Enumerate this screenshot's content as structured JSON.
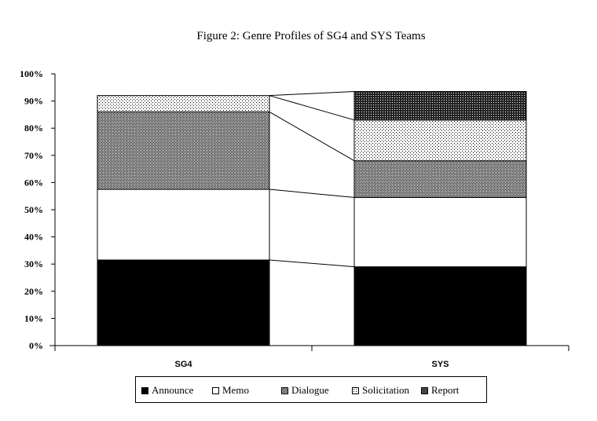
{
  "chart_data": {
    "type": "bar",
    "title": "Figure 2: Genre Profiles of SG4 and SYS Teams",
    "categories": [
      "SG4",
      "SYS"
    ],
    "series": [
      {
        "name": "Announce",
        "values": [
          31.5,
          29.0
        ]
      },
      {
        "name": "Memo",
        "values": [
          26.0,
          25.5
        ]
      },
      {
        "name": "Dialogue",
        "values": [
          28.5,
          13.5
        ]
      },
      {
        "name": "Solicitation",
        "values": [
          6.0,
          15.0
        ]
      },
      {
        "name": "Report",
        "values": [
          0.0,
          10.5
        ]
      }
    ],
    "stacked": true,
    "series_lines": true,
    "ylim": [
      0,
      100
    ],
    "yticks": [
      "0%",
      "10%",
      "20%",
      "30%",
      "40%",
      "50%",
      "60%",
      "70%",
      "80%",
      "90%",
      "100%"
    ],
    "legend_position": "bottom",
    "grid": false
  },
  "legend": {
    "items": [
      {
        "label": "Announce",
        "pattern": "solid-black"
      },
      {
        "label": "Memo",
        "pattern": "white"
      },
      {
        "label": "Dialogue",
        "pattern": "crosshatch"
      },
      {
        "label": "Solicitation",
        "pattern": "dots"
      },
      {
        "label": "Report",
        "pattern": "dense-dots"
      }
    ]
  }
}
